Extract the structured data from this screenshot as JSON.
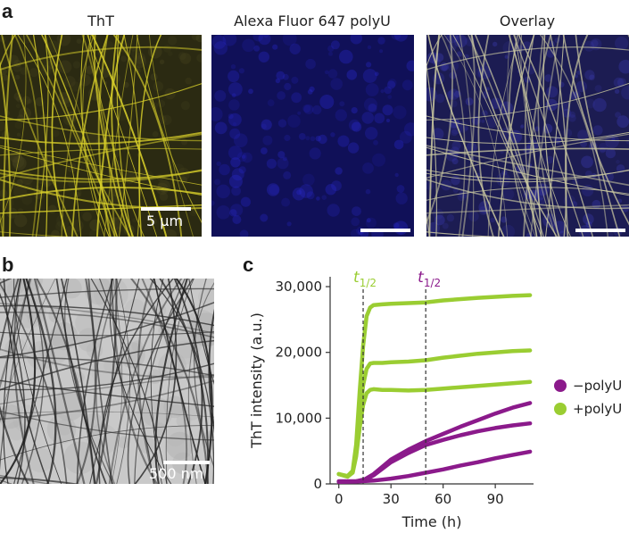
{
  "panels": {
    "a": {
      "letter": "a",
      "images": [
        {
          "title": "ThT",
          "color": "#d8cf2a",
          "bg": "#2b2a12"
        },
        {
          "title": "Alexa Fluor 647 polyU",
          "color": "#2a2ad8",
          "bg": "#101058"
        },
        {
          "title": "Overlay",
          "color": "#c9c7a0",
          "bg": "#1c1c52"
        }
      ],
      "scale_label": "5 μm"
    },
    "b": {
      "letter": "b",
      "scale_label": "500 nm"
    },
    "c": {
      "letter": "c"
    }
  },
  "chart_data": {
    "type": "line",
    "xlabel": "Time (h)",
    "ylabel": "ThT intensity (a.u.)",
    "xlim": [
      -5,
      112
    ],
    "ylim": [
      0,
      31500
    ],
    "xticks": [
      0,
      30,
      60,
      90
    ],
    "yticks": [
      0,
      10000,
      20000,
      30000
    ],
    "ytick_labels": [
      "0",
      "10,000",
      "20,000",
      "30,000"
    ],
    "annotations": [
      {
        "x": 14,
        "label": "t",
        "sub": "1/2",
        "color": "#9acd32"
      },
      {
        "x": 50,
        "label": "t",
        "sub": "1/2",
        "color": "#8b1a8b"
      }
    ],
    "legend": {
      "placement": "right",
      "entries": [
        {
          "name": "−polyU",
          "color": "#8b1a8b"
        },
        {
          "name": "+polyU",
          "color": "#9acd32"
        }
      ]
    },
    "series": [
      {
        "group": "+polyU",
        "color": "#9acd32",
        "x": [
          0,
          5,
          8,
          10,
          12,
          14,
          16,
          18,
          20,
          25,
          30,
          40,
          50,
          60,
          80,
          100,
          110
        ],
        "y": [
          1500,
          1200,
          2000,
          6000,
          14000,
          21000,
          25500,
          26800,
          27200,
          27300,
          27400,
          27500,
          27600,
          27900,
          28300,
          28600,
          28700
        ]
      },
      {
        "group": "+polyU",
        "color": "#9acd32",
        "x": [
          0,
          5,
          8,
          10,
          12,
          14,
          16,
          18,
          20,
          25,
          30,
          40,
          50,
          60,
          80,
          100,
          110
        ],
        "y": [
          1500,
          1100,
          1800,
          5000,
          10500,
          15000,
          17500,
          18300,
          18400,
          18400,
          18500,
          18600,
          18800,
          19200,
          19800,
          20200,
          20300
        ]
      },
      {
        "group": "+polyU",
        "color": "#9acd32",
        "x": [
          0,
          5,
          8,
          10,
          12,
          14,
          16,
          18,
          20,
          25,
          30,
          40,
          50,
          60,
          80,
          100,
          110
        ],
        "y": [
          1500,
          1100,
          1700,
          4200,
          8500,
          12000,
          13800,
          14300,
          14400,
          14300,
          14300,
          14200,
          14300,
          14500,
          14900,
          15300,
          15500
        ]
      },
      {
        "group": "−polyU",
        "color": "#8b1a8b",
        "x": [
          0,
          10,
          15,
          20,
          25,
          30,
          40,
          50,
          60,
          70,
          80,
          90,
          100,
          110
        ],
        "y": [
          400,
          400,
          700,
          1500,
          2600,
          3700,
          5200,
          6500,
          7600,
          8700,
          9700,
          10700,
          11600,
          12300
        ]
      },
      {
        "group": "−polyU",
        "color": "#8b1a8b",
        "x": [
          0,
          10,
          15,
          20,
          25,
          30,
          40,
          50,
          60,
          70,
          80,
          90,
          100,
          110
        ],
        "y": [
          400,
          400,
          600,
          1300,
          2300,
          3300,
          4700,
          5900,
          6700,
          7400,
          8000,
          8500,
          8900,
          9200
        ]
      },
      {
        "group": "−polyU",
        "color": "#8b1a8b",
        "x": [
          0,
          10,
          20,
          30,
          40,
          50,
          60,
          70,
          80,
          90,
          100,
          110
        ],
        "y": [
          300,
          350,
          500,
          800,
          1200,
          1700,
          2200,
          2800,
          3300,
          3900,
          4400,
          4900
        ]
      }
    ]
  }
}
